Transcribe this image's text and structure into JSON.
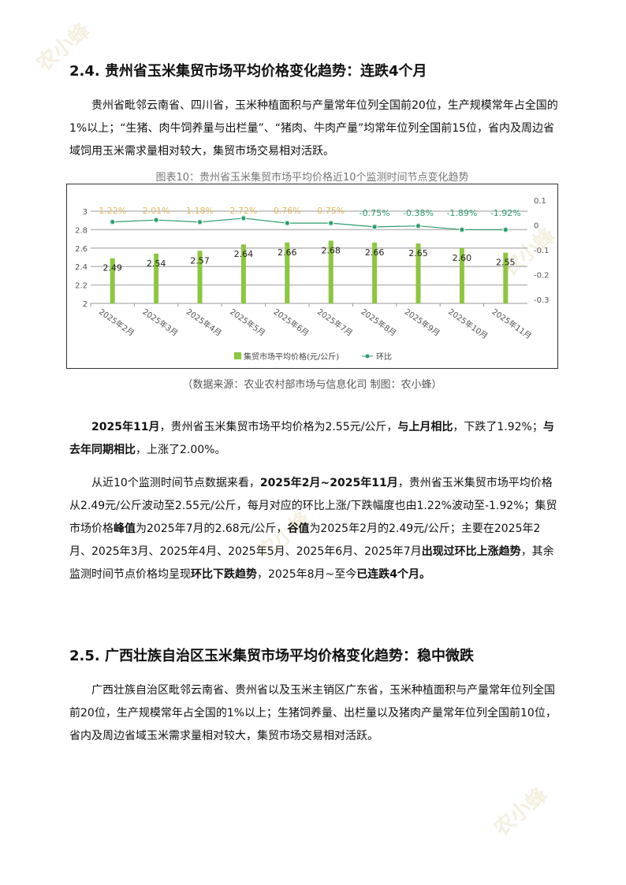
{
  "section1": {
    "title": "2.4.  贵州省玉米集贸市场平均价格变化趋势：连跌4个月",
    "intro": "贵州省毗邻云南省、四川省，玉米种植面积与产量常年位列全国前20位，生产规模常年占全国的1%以上；“生猪、肉牛饲养量与出栏量”、“猪肉、牛肉产量”均常年位列全国前15位，省内及周边省域饲用玉米需求量相对较大，集贸市场交易相对活跃。",
    "p2": [
      {
        "t": "2025年11月",
        "b": true
      },
      {
        "t": "，贵州省玉米集贸市场平均价格为2.55元/公斤，",
        "b": false
      },
      {
        "t": "与上月相比",
        "b": true
      },
      {
        "t": "，下跌了1.92%；",
        "b": false
      },
      {
        "t": "与去年同期相比",
        "b": true
      },
      {
        "t": "，上涨了2.00%。",
        "b": false
      }
    ],
    "p3": [
      {
        "t": "从近10个监测时间节点数据来看，",
        "b": false
      },
      {
        "t": "2025年2月~2025年11月",
        "b": true
      },
      {
        "t": "，贵州省玉米集贸市场平均价格从2.49元/公斤波动至2.55元/公斤，每月对应的环比上涨/下跌幅度也由1.22%波动至-1.92%；集贸市场价格",
        "b": false
      },
      {
        "t": "峰值",
        "b": true
      },
      {
        "t": "为2025年7月的2.68元/公斤，",
        "b": false
      },
      {
        "t": "谷值",
        "b": true
      },
      {
        "t": "为2025年2月的2.49元/公斤；主要在2025年2月、2025年3月、2025年4月、2025年5月、2025年6月、2025年7月",
        "b": false
      },
      {
        "t": "出现过环比上涨趋势",
        "b": true
      },
      {
        "t": "，其余监测时间节点价格均呈现",
        "b": false
      },
      {
        "t": "环比下跌趋势",
        "b": true
      },
      {
        "t": "，2025年8月~至今",
        "b": false
      },
      {
        "t": "已连跌4个月。",
        "b": true
      }
    ]
  },
  "chart_caption": "图表10：贵州省玉米集贸市场平均价格近10个监测时间节点变化趋势",
  "source": "（数据来源：农业农村部市场与信息化司     制图：农小蜂）",
  "chart_data": {
    "type": "bar+line",
    "categories": [
      "2025年2月",
      "2025年3月",
      "2025年4月",
      "2025年5月",
      "2025年6月",
      "2025年7月",
      "2025年8月",
      "2025年9月",
      "2025年10月",
      "2025年11月"
    ],
    "series": [
      {
        "name": "集贸市场平均价格(元/公斤)",
        "type": "bar",
        "axis": "left",
        "values": [
          2.49,
          2.54,
          2.57,
          2.64,
          2.66,
          2.68,
          2.66,
          2.65,
          2.6,
          2.55
        ],
        "labels": [
          "2.49",
          "2.54",
          "2.57",
          "2.64",
          "2.66",
          "2.68",
          "2.66",
          "2.65",
          "2.60",
          "2.55"
        ],
        "color": "#8dc63f"
      },
      {
        "name": "环比",
        "type": "line",
        "axis": "right",
        "values": [
          0.0122,
          0.0201,
          0.0118,
          0.0272,
          0.0076,
          0.0075,
          -0.0075,
          -0.0038,
          -0.0189,
          -0.0192
        ],
        "labels": [
          "1.22%",
          "2.01%",
          "1.18%",
          "2.72%",
          "0.76%",
          "0.75%",
          "-0.75%",
          "-0.38%",
          "-1.89%",
          "-1.92%"
        ],
        "color": "#2e9b6e",
        "pos_label_color": "#e0b860",
        "neg_label_color": "#2e9b6e"
      }
    ],
    "yleft": {
      "range": [
        2,
        3
      ],
      "ticks": [
        "2",
        "2.2",
        "2.4",
        "2.6",
        "2.8",
        "3"
      ]
    },
    "yright": {
      "range": [
        -0.3,
        0.1
      ],
      "ticks": [
        "-0.3",
        "-0.2",
        "-0.1",
        "0",
        "0.1"
      ]
    },
    "grid": true,
    "legend": "bottom"
  },
  "section2": {
    "title": "2.5.  广西壮族自治区玉米集贸市场平均价格变化趋势：稳中微跌",
    "intro": "广西壮族自治区毗邻云南省、贵州省以及玉米主销区广东省，玉米种植面积与产量常年位列全国前20位，生产规模常年占全国的1%以上；生猪饲养量、出栏量以及猪肉产量常年位列全国前10位，省内及周边省域玉米需求量相对较大，集贸市场交易相对活跃。"
  },
  "watermark": "农小蜂 BEEDATA"
}
